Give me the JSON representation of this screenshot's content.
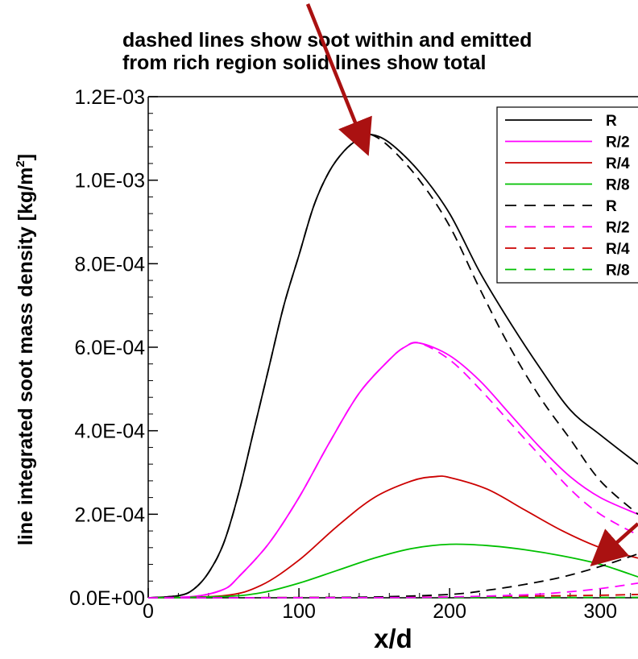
{
  "chart_data": {
    "type": "line",
    "title_lines": [
      "dashed lines show soot  within and emitted",
      "from rich region solid lines show total"
    ],
    "xlabel": "x/d",
    "ylabel": "line integrated soot mass density [kg/m",
    "ylabel_sup": "2",
    "ylabel_close": "]",
    "xlim": [
      0,
      325
    ],
    "ylim": [
      0,
      0.0012
    ],
    "x_ticks": [
      0,
      100,
      200,
      300
    ],
    "x_tick_labels": [
      "0",
      "100",
      "200",
      "300"
    ],
    "y_ticks": [
      0,
      0.0002,
      0.0004,
      0.0006,
      0.0008,
      0.001,
      0.0012
    ],
    "y_tick_labels": [
      "0.0E+00",
      "2.0E-04",
      "4.0E-04",
      "6.0E-04",
      "8.0E-04",
      "1.0E-03",
      "1.2E-03"
    ],
    "legend_position": "top-right",
    "series": [
      {
        "name": "R",
        "color": "#000000",
        "style": "solid",
        "x": [
          0,
          20,
          30,
          40,
          50,
          60,
          70,
          80,
          90,
          100,
          110,
          120,
          130,
          140,
          147,
          160,
          180,
          200,
          220,
          240,
          260,
          280,
          300,
          325
        ],
        "y": [
          0,
          5e-06,
          2e-05,
          6e-05,
          0.00013,
          0.00025,
          0.0004,
          0.00055,
          0.0007,
          0.00082,
          0.00094,
          0.00102,
          0.00107,
          0.0011,
          0.00111,
          0.00109,
          0.00102,
          0.00092,
          0.00078,
          0.00066,
          0.00055,
          0.00045,
          0.00039,
          0.00032
        ]
      },
      {
        "name": "R/2",
        "color": "#ff00ff",
        "style": "solid",
        "x": [
          0,
          30,
          50,
          60,
          80,
          100,
          120,
          140,
          160,
          170,
          180,
          200,
          220,
          240,
          260,
          280,
          300,
          325
        ],
        "y": [
          0,
          3e-06,
          2e-05,
          5e-05,
          0.00013,
          0.00024,
          0.00037,
          0.00049,
          0.00057,
          0.0006,
          0.00061,
          0.00058,
          0.00052,
          0.00044,
          0.00036,
          0.00029,
          0.00024,
          0.0002
        ]
      },
      {
        "name": "R/4",
        "color": "#cc0000",
        "style": "solid",
        "x": [
          0,
          50,
          75,
          100,
          125,
          150,
          175,
          190,
          200,
          225,
          250,
          275,
          300,
          325
        ],
        "y": [
          0,
          5e-06,
          3e-05,
          9e-05,
          0.00017,
          0.00024,
          0.00028,
          0.00029,
          0.000288,
          0.00026,
          0.00021,
          0.00016,
          0.00012,
          9.5e-05
        ]
      },
      {
        "name": "R/8",
        "color": "#00c000",
        "style": "solid",
        "x": [
          0,
          50,
          75,
          100,
          125,
          150,
          175,
          200,
          225,
          250,
          275,
          300,
          325
        ],
        "y": [
          0,
          3e-06,
          1.2e-05,
          3.5e-05,
          6.5e-05,
          9.5e-05,
          0.000118,
          0.000128,
          0.000125,
          0.000115,
          0.0001,
          8e-05,
          5e-05
        ]
      },
      {
        "name": "R",
        "color": "#000000",
        "style": "dashed",
        "x": [
          0,
          20,
          30,
          40,
          50,
          60,
          70,
          80,
          90,
          100,
          110,
          120,
          130,
          140,
          147,
          160,
          180,
          200,
          220,
          240,
          260,
          280,
          300,
          325
        ],
        "y": [
          0,
          5e-06,
          2e-05,
          6e-05,
          0.00013,
          0.00025,
          0.0004,
          0.00055,
          0.0007,
          0.00082,
          0.00094,
          0.00102,
          0.00107,
          0.0011,
          0.00111,
          0.00108,
          0.001,
          0.00089,
          0.00074,
          0.0006,
          0.00048,
          0.00038,
          0.00028,
          0.0002
        ]
      },
      {
        "name": "R/2",
        "color": "#ff00ff",
        "style": "dashed",
        "x": [
          0,
          30,
          50,
          60,
          80,
          100,
          120,
          140,
          160,
          170,
          180,
          200,
          220,
          240,
          260,
          280,
          300,
          325
        ],
        "y": [
          0,
          3e-06,
          2e-05,
          5e-05,
          0.00013,
          0.00024,
          0.00037,
          0.00049,
          0.00057,
          0.0006,
          0.00061,
          0.00057,
          0.0005,
          0.00042,
          0.00034,
          0.00026,
          0.0002,
          0.00015
        ]
      },
      {
        "name": "R/4",
        "color": "#cc0000",
        "style": "dashed",
        "x": [
          0,
          50,
          100,
          150,
          200,
          250,
          300,
          325
        ],
        "y": [
          0,
          2e-07,
          5e-07,
          1e-06,
          2e-06,
          4e-06,
          6e-06,
          8e-06
        ]
      },
      {
        "name": "R/8",
        "color": "#00c000",
        "style": "dashed",
        "x": [
          0,
          100,
          200,
          325
        ],
        "y": [
          0,
          0,
          5e-07,
          1e-06
        ]
      },
      {
        "name": "",
        "color": "#000000",
        "style": "dashed",
        "legend": false,
        "x": [
          0,
          100,
          150,
          200,
          225,
          250,
          275,
          300,
          325
        ],
        "y": [
          0,
          5e-07,
          2e-06,
          8e-06,
          1.8e-05,
          3.2e-05,
          5e-05,
          7.5e-05,
          0.000105
        ]
      },
      {
        "name": "",
        "color": "#ff00ff",
        "style": "dashed",
        "legend": false,
        "x": [
          0,
          150,
          200,
          250,
          275,
          300,
          325
        ],
        "y": [
          0,
          3e-07,
          2e-06,
          7e-06,
          1.3e-05,
          2.2e-05,
          3.5e-05
        ]
      }
    ],
    "arrows": [
      {
        "from": [
          382,
          5
        ],
        "to": [
          451,
          177
        ],
        "color": "#aa1111"
      },
      {
        "from": [
          792,
          650
        ],
        "to": [
          746,
          691
        ],
        "color": "#aa1111"
      }
    ]
  }
}
